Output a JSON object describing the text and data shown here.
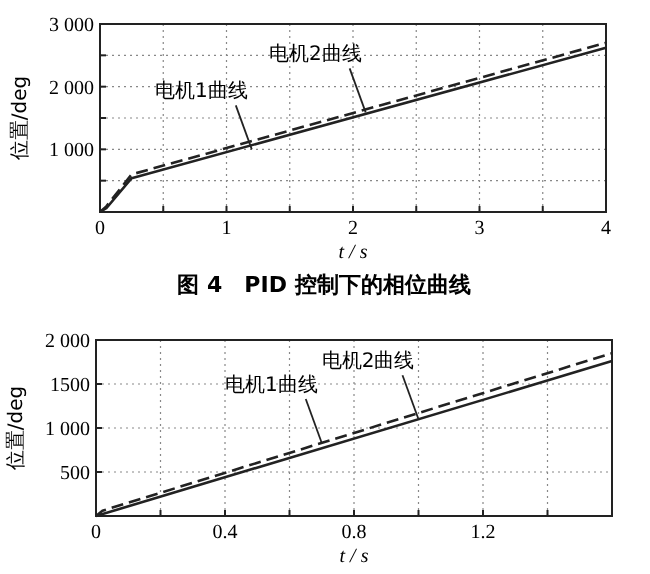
{
  "chart_data": [
    {
      "type": "line",
      "xlabel": "t / s",
      "ylabel": "位置/deg",
      "xlim": [
        0,
        4
      ],
      "ylim": [
        0,
        3000
      ],
      "xticks": [
        0,
        {
          "value": 0.5,
          "label": null
        },
        1,
        {
          "value": 1.5,
          "label": null
        },
        2,
        {
          "value": 2.5,
          "label": null
        },
        3,
        {
          "value": 3.5,
          "label": null
        },
        4
      ],
      "yticks": [
        {
          "value": 0,
          "label": null
        },
        {
          "value": 500,
          "label": null
        },
        {
          "value": 1000,
          "label": "1 000"
        },
        {
          "value": 1500,
          "label": null
        },
        {
          "value": 2000,
          "label": "2 000"
        },
        {
          "value": 2500,
          "label": null
        },
        {
          "value": 3000,
          "label": "3 000"
        }
      ],
      "grid": true,
      "series": [
        {
          "color": "#222222",
          "line_style": "solid",
          "x": [
            0,
            0.05,
            0.25,
            4
          ],
          "values": [
            0,
            60,
            540,
            2620
          ]
        },
        {
          "color": "#222222",
          "line_style": "dashed",
          "x": [
            0,
            0.05,
            0.25,
            4
          ],
          "values": [
            0,
            90,
            600,
            2700
          ]
        }
      ],
      "annotations": [
        {
          "text": "电机1曲线",
          "x": 1.2,
          "y": 1000
        },
        {
          "text": "电机2曲线",
          "x": 2.1,
          "y": 1590
        },
        "图 4　PID 控制下的相位曲线"
      ]
    },
    {
      "type": "line",
      "xlabel": "t / s",
      "ylabel": "位置/deg",
      "xlim": [
        0,
        1.6
      ],
      "ylim": [
        0,
        2000
      ],
      "xticks": [
        0,
        {
          "value": 0.2,
          "label": null
        },
        0.4,
        {
          "value": 0.6,
          "label": null
        },
        0.8,
        {
          "value": 1.0,
          "label": null
        },
        1.2,
        {
          "value": 1.4,
          "label": null
        }
      ],
      "yticks": [
        {
          "value": 0,
          "label": null
        },
        500,
        {
          "value": 1000,
          "label": "1 000"
        },
        1500,
        {
          "value": 2000,
          "label": "2 000"
        }
      ],
      "grid": true,
      "series": [
        {
          "color": "#222222",
          "line_style": "solid",
          "x": [
            0,
            1.6
          ],
          "values": [
            0,
            1760
          ]
        },
        {
          "color": "#222222",
          "line_style": "dashed",
          "x": [
            0,
            0.02,
            1.6
          ],
          "values": [
            0,
            60,
            1850
          ]
        }
      ],
      "annotations": [
        {
          "text": "电机1曲线",
          "x": 0.7,
          "y": 830
        },
        {
          "text": "电机2曲线",
          "x": 1.0,
          "y": 1100
        }
      ]
    }
  ]
}
